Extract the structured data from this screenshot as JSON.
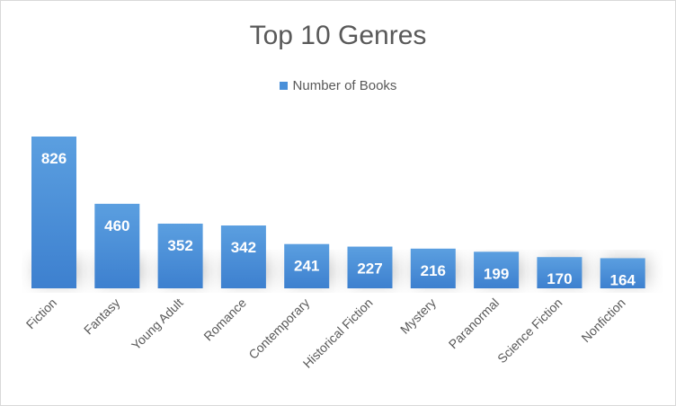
{
  "chart_data": {
    "type": "bar",
    "title": "Top 10 Genres",
    "xlabel": "",
    "ylabel": "",
    "ylim": [
      0,
      826
    ],
    "grid": false,
    "legend_position": "top-center",
    "color": "#4a90d9",
    "categories": [
      "Fiction",
      "Fantasy",
      "Young Adult",
      "Romance",
      "Contemporary",
      "Historical Fiction",
      "Mystery",
      "Paranormal",
      "Science Fiction",
      "Nonfiction"
    ],
    "series": [
      {
        "name": "Number of Books",
        "values": [
          826,
          460,
          352,
          342,
          241,
          227,
          216,
          199,
          170,
          164
        ]
      }
    ]
  }
}
